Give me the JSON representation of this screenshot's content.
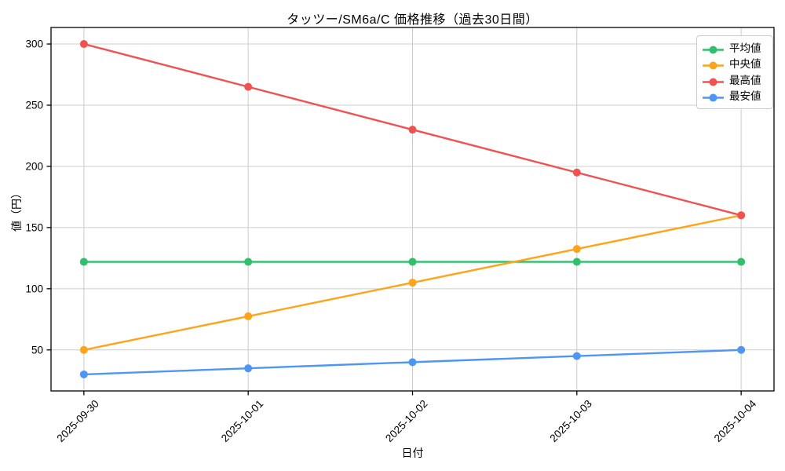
{
  "chart_data": {
    "type": "line",
    "title": "タッツー/SM6a/C  価格推移（過去30日間）",
    "xlabel": "日付",
    "ylabel": "値（円）",
    "categories": [
      "2025-09-30",
      "2025-10-01",
      "2025-10-02",
      "2025-10-03",
      "2025-10-04"
    ],
    "series": [
      {
        "key": "average",
        "name": "平均値",
        "color": "#2EC06A",
        "values": [
          122,
          122,
          122,
          122,
          122
        ]
      },
      {
        "key": "median",
        "name": "中央値",
        "color": "#FFA31A",
        "values": [
          50,
          77.5,
          105,
          132.5,
          160
        ]
      },
      {
        "key": "highest",
        "name": "最高値",
        "color": "#F05252",
        "values": [
          300,
          265,
          230,
          195,
          160
        ]
      },
      {
        "key": "lowest",
        "name": "最安値",
        "color": "#4D96F5",
        "values": [
          30,
          35,
          40,
          45,
          50
        ]
      }
    ],
    "yticks": [
      50,
      100,
      150,
      200,
      250,
      300
    ],
    "ylim": [
      16.5,
      313.5
    ],
    "grid": true,
    "legend_position": "upper right",
    "colors": {
      "grid": "#cccccc",
      "axis": "#000000",
      "background": "#ffffff",
      "text": "#000000"
    }
  }
}
